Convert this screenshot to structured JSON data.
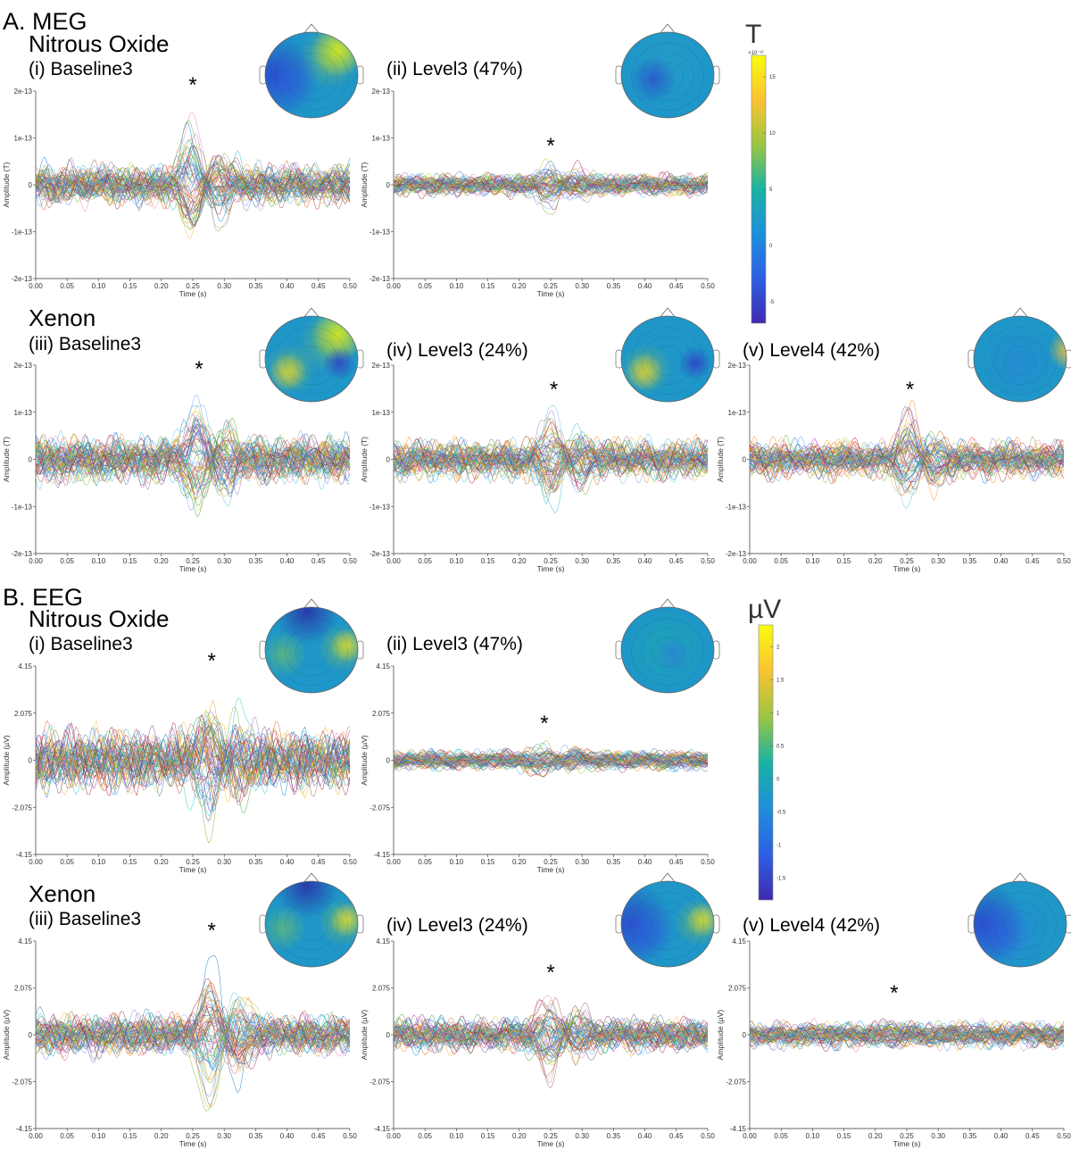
{
  "sections": [
    {
      "id": "meg",
      "label": "A. MEG",
      "drugs": [
        {
          "id": "nitrous",
          "label": "Nitrous Oxide"
        },
        {
          "id": "xenon",
          "label": "Xenon"
        }
      ],
      "colorbar": {
        "unit": "T",
        "scale_label": "×10⁻¹³",
        "ticks": [
          "15",
          "10",
          "5",
          "0",
          "-5"
        ],
        "colors": [
          "#f9fb0e",
          "#fbc332",
          "#9bc542",
          "#1ab3a3",
          "#1e8fdb",
          "#2d5fe5",
          "#3f2bb0"
        ]
      }
    },
    {
      "id": "eeg",
      "label": "B. EEG",
      "drugs": [
        {
          "id": "nitrous",
          "label": "Nitrous Oxide"
        },
        {
          "id": "xenon",
          "label": "Xenon"
        }
      ],
      "colorbar": {
        "unit": "µV",
        "scale_label": "",
        "ticks": [
          "2",
          "1.5",
          "1",
          "0.5",
          "0",
          "-0.5",
          "-1",
          "-1.5"
        ],
        "colors": [
          "#f9fb0e",
          "#fbc332",
          "#9bc542",
          "#1ab3a3",
          "#1e8fdb",
          "#2d5fe5",
          "#3f2bb0"
        ]
      }
    }
  ],
  "chart_data": [
    {
      "type": "line",
      "id": "meg-i",
      "section": "meg",
      "title": "(i) Baseline3",
      "annotation": "*",
      "xlabel": "Time (s)",
      "ylabel": "Amplitude (T)",
      "xlim": [
        0.0,
        0.5
      ],
      "ylim": [
        "-2e-13",
        "2e-13"
      ],
      "x_ticks": [
        "0.00",
        "0.05",
        "0.10",
        "0.15",
        "0.20",
        "0.25",
        "0.30",
        "0.35",
        "0.40",
        "0.45",
        "0.50"
      ],
      "y_ticks": [
        "2e-13",
        "1e-13",
        "0",
        "-1e-13",
        "-2e-13"
      ],
      "peak_time_s": 0.25,
      "peak_amplitude_frac": 0.95,
      "background_amplitude_frac": 0.22,
      "n_channels": 60,
      "seed": 11,
      "topomap": {
        "maps": [
          "high-right-front",
          "low-left"
        ]
      }
    },
    {
      "type": "line",
      "id": "meg-ii",
      "section": "meg",
      "title": "(ii) Level3 (47%)",
      "annotation": "*",
      "xlabel": "Time (s)",
      "ylabel": "Amplitude (T)",
      "xlim": [
        0.0,
        0.5
      ],
      "ylim": [
        "-2e-13",
        "2e-13"
      ],
      "x_ticks": [
        "0.00",
        "0.05",
        "0.10",
        "0.15",
        "0.20",
        "0.25",
        "0.30",
        "0.35",
        "0.40",
        "0.45",
        "0.50"
      ],
      "y_ticks": [
        "2e-13",
        "1e-13",
        "0",
        "-1e-13",
        "-2e-13"
      ],
      "peak_time_s": 0.25,
      "peak_amplitude_frac": 0.3,
      "background_amplitude_frac": 0.12,
      "n_channels": 60,
      "seed": 23,
      "topomap": {
        "maps": [
          "flat-mid",
          "low-left-center"
        ]
      }
    },
    {
      "type": "line",
      "id": "meg-iii",
      "section": "meg",
      "title": "(iii) Baseline3",
      "annotation": "*",
      "xlabel": "Time (s)",
      "ylabel": "Amplitude (T)",
      "xlim": [
        0.0,
        0.5
      ],
      "ylim": [
        "-2e-13",
        "2e-13"
      ],
      "x_ticks": [
        "0.00",
        "0.05",
        "0.10",
        "0.15",
        "0.20",
        "0.25",
        "0.30",
        "0.35",
        "0.40",
        "0.45",
        "0.50"
      ],
      "y_ticks": [
        "2e-13",
        "1e-13",
        "0",
        "-1e-13",
        "-2e-13"
      ],
      "peak_time_s": 0.26,
      "peak_amplitude_frac": 0.85,
      "background_amplitude_frac": 0.25,
      "n_channels": 60,
      "seed": 37,
      "topomap": {
        "maps": [
          "high-left-temporal",
          "high-right-front",
          "low-right"
        ]
      }
    },
    {
      "type": "line",
      "id": "meg-iv",
      "section": "meg",
      "title": "(iv) Level3 (24%)",
      "annotation": "*",
      "xlabel": "Time (s)",
      "ylabel": "Amplitude (T)",
      "xlim": [
        0.0,
        0.5
      ],
      "ylim": [
        "-2e-13",
        "2e-13"
      ],
      "x_ticks": [
        "0.00",
        "0.05",
        "0.10",
        "0.15",
        "0.20",
        "0.25",
        "0.30",
        "0.35",
        "0.40",
        "0.45",
        "0.50"
      ],
      "y_ticks": [
        "2e-13",
        "1e-13",
        "0",
        "-1e-13",
        "-2e-13"
      ],
      "peak_time_s": 0.255,
      "peak_amplitude_frac": 0.6,
      "background_amplitude_frac": 0.2,
      "n_channels": 60,
      "seed": 41,
      "topomap": {
        "maps": [
          "high-left-temporal",
          "low-right"
        ]
      }
    },
    {
      "type": "line",
      "id": "meg-v",
      "section": "meg",
      "title": "(v) Level4 (42%)",
      "annotation": "*",
      "xlabel": "Time (s)",
      "ylabel": "Amplitude (T)",
      "xlim": [
        0.0,
        0.5
      ],
      "ylim": [
        "-2e-13",
        "2e-13"
      ],
      "x_ticks": [
        "0.00",
        "0.05",
        "0.10",
        "0.15",
        "0.20",
        "0.25",
        "0.30",
        "0.35",
        "0.40",
        "0.45",
        "0.50"
      ],
      "y_ticks": [
        "2e-13",
        "1e-13",
        "0",
        "-1e-13",
        "-2e-13"
      ],
      "peak_time_s": 0.255,
      "peak_amplitude_frac": 0.62,
      "background_amplitude_frac": 0.2,
      "n_channels": 60,
      "seed": 53,
      "topomap": {
        "maps": [
          "high-right-edge",
          "flat-blue"
        ]
      }
    },
    {
      "type": "line",
      "id": "eeg-i",
      "section": "eeg",
      "title": "(i) Baseline3",
      "annotation": "*",
      "xlabel": "Time (s)",
      "ylabel": "Amplitude (µV)",
      "xlim": [
        0.0,
        0.5
      ],
      "ylim": [
        "-4.15",
        "4.15"
      ],
      "x_ticks": [
        "0.00",
        "0.05",
        "0.10",
        "0.15",
        "0.20",
        "0.25",
        "0.30",
        "0.35",
        "0.40",
        "0.45",
        "0.50"
      ],
      "y_ticks": [
        "4.15",
        "2.075",
        "0",
        "-2.075",
        "-4.15"
      ],
      "peak_time_s": 0.28,
      "peak_amplitude_frac": 0.95,
      "background_amplitude_frac": 0.32,
      "n_channels": 60,
      "seed": 61,
      "topomap": {
        "maps": [
          "high-right-temporal",
          "low-front",
          "mid-left"
        ]
      }
    },
    {
      "type": "line",
      "id": "eeg-ii",
      "section": "eeg",
      "title": "(ii) Level3 (47%)",
      "annotation": "*",
      "xlabel": "Time (s)",
      "ylabel": "Amplitude (µV)",
      "xlim": [
        0.0,
        0.5
      ],
      "ylim": [
        "-4.15",
        "4.15"
      ],
      "x_ticks": [
        "0.00",
        "0.05",
        "0.10",
        "0.15",
        "0.20",
        "0.25",
        "0.30",
        "0.35",
        "0.40",
        "0.45",
        "0.50"
      ],
      "y_ticks": [
        "4.15",
        "2.075",
        "0",
        "-2.075",
        "-4.15"
      ],
      "peak_time_s": 0.24,
      "peak_amplitude_frac": 0.22,
      "background_amplitude_frac": 0.1,
      "n_channels": 60,
      "seed": 71,
      "topomap": {
        "maps": [
          "flat-teal",
          "low-center"
        ]
      }
    },
    {
      "type": "line",
      "id": "eeg-iii",
      "section": "eeg",
      "title": "(iii) Baseline3",
      "annotation": "*",
      "xlabel": "Time (s)",
      "ylabel": "Amplitude (µV)",
      "xlim": [
        0.0,
        0.5
      ],
      "ylim": [
        "-4.15",
        "4.15"
      ],
      "x_ticks": [
        "0.00",
        "0.05",
        "0.10",
        "0.15",
        "0.20",
        "0.25",
        "0.30",
        "0.35",
        "0.40",
        "0.45",
        "0.50"
      ],
      "y_ticks": [
        "4.15",
        "2.075",
        "0",
        "-2.075",
        "-4.15"
      ],
      "peak_time_s": 0.28,
      "peak_amplitude_frac": 0.98,
      "background_amplitude_frac": 0.22,
      "n_channels": 60,
      "seed": 83,
      "topomap": {
        "maps": [
          "high-right-temporal",
          "low-front",
          "mid-left"
        ]
      }
    },
    {
      "type": "line",
      "id": "eeg-iv",
      "section": "eeg",
      "title": "(iv) Level3 (24%)",
      "annotation": "*",
      "xlabel": "Time (s)",
      "ylabel": "Amplitude (µV)",
      "xlim": [
        0.0,
        0.5
      ],
      "ylim": [
        "-4.15",
        "4.15"
      ],
      "x_ticks": [
        "0.00",
        "0.05",
        "0.10",
        "0.15",
        "0.20",
        "0.25",
        "0.30",
        "0.35",
        "0.40",
        "0.45",
        "0.50"
      ],
      "y_ticks": [
        "4.15",
        "2.075",
        "0",
        "-2.075",
        "-4.15"
      ],
      "peak_time_s": 0.25,
      "peak_amplitude_frac": 0.55,
      "background_amplitude_frac": 0.18,
      "n_channels": 60,
      "seed": 97,
      "topomap": {
        "maps": [
          "high-right-temporal",
          "low-left"
        ]
      }
    },
    {
      "type": "line",
      "id": "eeg-v",
      "section": "eeg",
      "title": "(v) Level4 (42%)",
      "annotation": "*",
      "xlabel": "Time (s)",
      "ylabel": "Amplitude (µV)",
      "xlim": [
        0.0,
        0.5
      ],
      "ylim": [
        "-4.15",
        "4.15"
      ],
      "x_ticks": [
        "0.00",
        "0.05",
        "0.10",
        "0.15",
        "0.20",
        "0.25",
        "0.30",
        "0.35",
        "0.40",
        "0.45",
        "0.50"
      ],
      "y_ticks": [
        "4.15",
        "2.075",
        "0",
        "-2.075",
        "-4.15"
      ],
      "peak_time_s": 0.23,
      "peak_amplitude_frac": 0.15,
      "background_amplitude_frac": 0.14,
      "n_channels": 60,
      "seed": 101,
      "topomap": {
        "maps": [
          "flat-teal-blue",
          "low-left"
        ]
      }
    }
  ]
}
